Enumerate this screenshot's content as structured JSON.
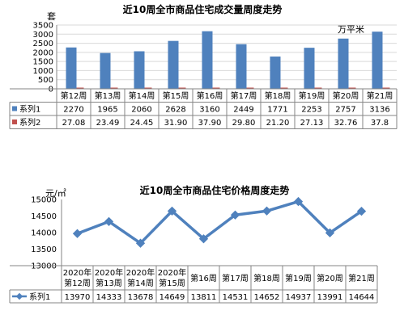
{
  "chart_data": [
    {
      "type": "bar",
      "title": "近10周全市商品住宅成交量周度走势",
      "y_unit_label": "套",
      "secondary_unit_label": "万平米",
      "categories": [
        "第12周",
        "第13周",
        "第14周",
        "第15周",
        "第16周",
        "第17周",
        "第18周",
        "第19周",
        "第20周",
        "第21周"
      ],
      "ylim": [
        0,
        3500
      ],
      "yticks": [
        0,
        500,
        1000,
        1500,
        2000,
        2500,
        3000,
        3500
      ],
      "series": [
        {
          "name": "系列1",
          "values": [
            2270,
            1965,
            2060,
            2628,
            3160,
            2449,
            1771,
            2253,
            2757,
            3136
          ],
          "labels": [
            "2270",
            "1965",
            "2060",
            "2628",
            "3160",
            "2449",
            "1771",
            "2253",
            "2757",
            "3136"
          ]
        },
        {
          "name": "系列2",
          "values": [
            27.08,
            23.49,
            24.45,
            31.9,
            37.9,
            29.8,
            21.2,
            27.13,
            32.76,
            37.8
          ],
          "labels": [
            "27.08",
            "23.49",
            "24.45",
            "31.90",
            "37.90",
            "29.80",
            "21.20",
            "27.13",
            "32.76",
            "37.8"
          ]
        }
      ],
      "colors": {
        "series1": "#4f81bd",
        "series2": "#c0504d"
      },
      "grid": true,
      "legend": "data-table"
    },
    {
      "type": "line",
      "title": "近10周全市商品住宅价格周度走势",
      "y_unit_label": "元/㎡",
      "categories": [
        [
          "2020年",
          "第12周"
        ],
        [
          "2020年",
          "第13周"
        ],
        [
          "2020年",
          "第14周"
        ],
        [
          "2020年",
          "第15周"
        ],
        [
          "第16周"
        ],
        [
          "第17周"
        ],
        [
          "第18周"
        ],
        [
          "第19周"
        ],
        [
          "第20周"
        ],
        [
          "第21周"
        ]
      ],
      "ylim": [
        13000,
        15000
      ],
      "yticks": [
        13000,
        13500,
        14000,
        14500,
        15000
      ],
      "series": [
        {
          "name": "系列1",
          "values": [
            13970,
            14333,
            13678,
            14649,
            13811,
            14531,
            14652,
            14937,
            13991,
            14644
          ],
          "labels": [
            "13970",
            "14333",
            "13678",
            "14649",
            "13811",
            "14531",
            "14652",
            "14937",
            "13991",
            "14644"
          ]
        }
      ],
      "colors": {
        "series1": "#4f81bd"
      },
      "grid": false,
      "legend": "data-table"
    }
  ]
}
